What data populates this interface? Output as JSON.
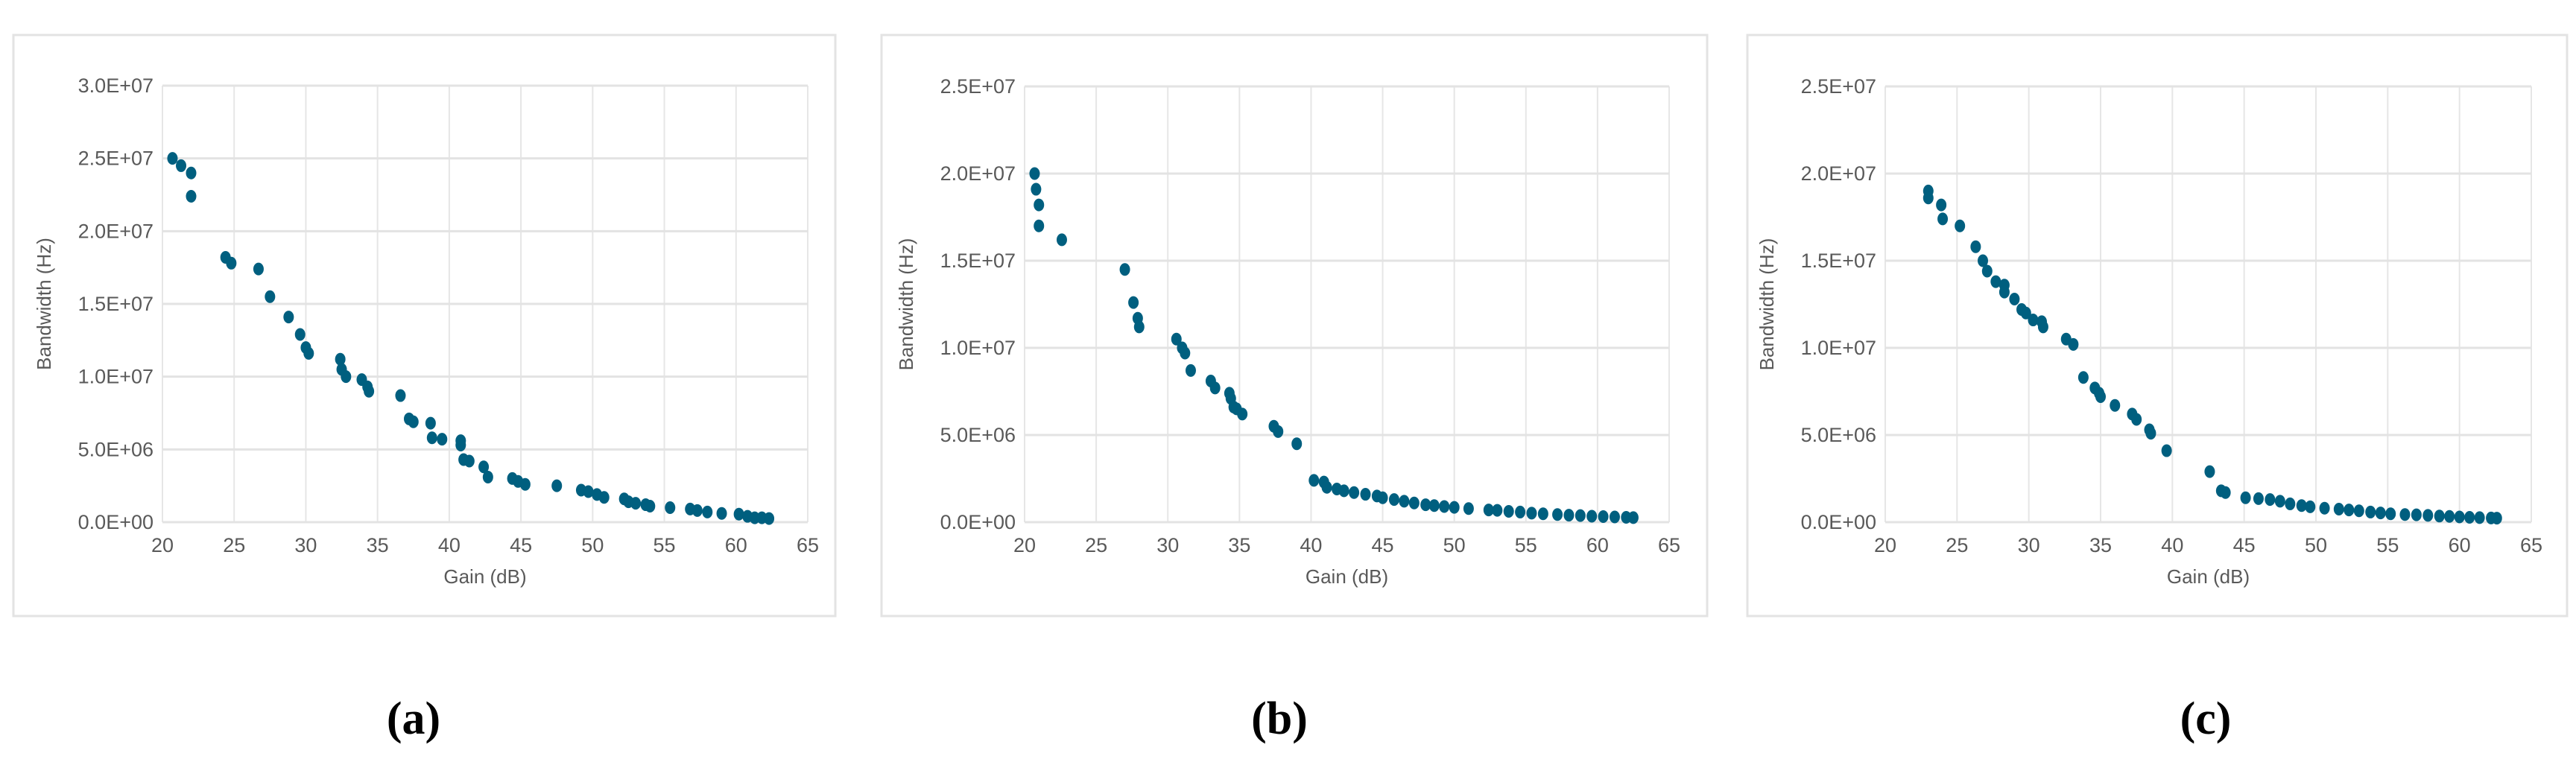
{
  "chart_data": [
    {
      "type": "scatter",
      "label": "(a)",
      "xlabel": "Gain (dB)",
      "ylabel": "Bandwidth (Hz)",
      "xlim": [
        20,
        65
      ],
      "ylim": [
        0,
        30000000
      ],
      "grid": true,
      "color": "#005f7f",
      "xticks": [
        "20",
        "25",
        "30",
        "35",
        "40",
        "45",
        "50",
        "55",
        "60",
        "65"
      ],
      "yticks": [
        "0.0E+00",
        "5.0E+06",
        "1.0E+07",
        "1.5E+07",
        "2.0E+07",
        "2.5E+07",
        "3.0E+07"
      ],
      "points": [
        [
          20.7,
          25000000
        ],
        [
          21.3,
          24500000
        ],
        [
          22,
          24000000
        ],
        [
          22,
          22400000
        ],
        [
          24.4,
          18200000
        ],
        [
          24.8,
          17800000
        ],
        [
          26.7,
          17400000
        ],
        [
          27.5,
          15500000
        ],
        [
          28.8,
          14100000
        ],
        [
          29.6,
          12900000
        ],
        [
          30,
          12000000
        ],
        [
          30.2,
          11600000
        ],
        [
          32.4,
          11200000
        ],
        [
          32.5,
          10500000
        ],
        [
          32.8,
          10000000
        ],
        [
          33.9,
          9800000
        ],
        [
          34.3,
          9300000
        ],
        [
          34.4,
          9000000
        ],
        [
          36.6,
          8700000
        ],
        [
          37.2,
          7100000
        ],
        [
          37.5,
          6900000
        ],
        [
          38.7,
          6800000
        ],
        [
          38.8,
          5800000
        ],
        [
          39.5,
          5700000
        ],
        [
          40.8,
          5600000
        ],
        [
          40.8,
          5300000
        ],
        [
          41,
          4300000
        ],
        [
          41.4,
          4200000
        ],
        [
          42.4,
          3800000
        ],
        [
          42.7,
          3100000
        ],
        [
          44.4,
          3000000
        ],
        [
          44.8,
          2800000
        ],
        [
          45.3,
          2600000
        ],
        [
          47.5,
          2500000
        ],
        [
          49.2,
          2200000
        ],
        [
          49.7,
          2100000
        ],
        [
          50.3,
          1900000
        ],
        [
          50.8,
          1700000
        ],
        [
          52.2,
          1600000
        ],
        [
          52.5,
          1400000
        ],
        [
          53,
          1300000
        ],
        [
          53.7,
          1200000
        ],
        [
          54,
          1100000
        ],
        [
          55.4,
          1000000
        ],
        [
          56.8,
          900000
        ],
        [
          57.3,
          800000
        ],
        [
          58,
          700000
        ],
        [
          59,
          600000
        ],
        [
          60.2,
          550000
        ],
        [
          60.8,
          400000
        ],
        [
          61.3,
          300000
        ],
        [
          61.8,
          300000
        ],
        [
          62.3,
          250000
        ]
      ]
    },
    {
      "type": "scatter",
      "label": "(b)",
      "xlabel": "Gain (dB)",
      "ylabel": "Bandwidth (Hz)",
      "xlim": [
        20,
        65
      ],
      "ylim": [
        0,
        25000000
      ],
      "grid": true,
      "color": "#005f7f",
      "xticks": [
        "20",
        "25",
        "30",
        "35",
        "40",
        "45",
        "50",
        "55",
        "60",
        "65"
      ],
      "yticks": [
        "0.0E+00",
        "5.0E+06",
        "1.0E+07",
        "1.5E+07",
        "2.0E+07",
        "2.5E+07"
      ],
      "points": [
        [
          20.7,
          20000000
        ],
        [
          20.8,
          19100000
        ],
        [
          21,
          18200000
        ],
        [
          21,
          17000000
        ],
        [
          22.6,
          16200000
        ],
        [
          27,
          14500000
        ],
        [
          27.6,
          12600000
        ],
        [
          27.9,
          11700000
        ],
        [
          28,
          11200000
        ],
        [
          30.6,
          10500000
        ],
        [
          31,
          10000000
        ],
        [
          31.2,
          9700000
        ],
        [
          31.6,
          8700000
        ],
        [
          33,
          8100000
        ],
        [
          33.3,
          7700000
        ],
        [
          34.3,
          7400000
        ],
        [
          34.4,
          7100000
        ],
        [
          34.6,
          6600000
        ],
        [
          34.8,
          6500000
        ],
        [
          35.2,
          6200000
        ],
        [
          37.4,
          5500000
        ],
        [
          37.7,
          5200000
        ],
        [
          39,
          4500000
        ],
        [
          40.2,
          2400000
        ],
        [
          40.9,
          2300000
        ],
        [
          41.1,
          2000000
        ],
        [
          41.8,
          1900000
        ],
        [
          42.3,
          1800000
        ],
        [
          43,
          1700000
        ],
        [
          43.8,
          1600000
        ],
        [
          44.6,
          1500000
        ],
        [
          45,
          1400000
        ],
        [
          45.8,
          1300000
        ],
        [
          46.5,
          1200000
        ],
        [
          47.2,
          1100000
        ],
        [
          48,
          1000000
        ],
        [
          48.6,
          950000
        ],
        [
          49.3,
          900000
        ],
        [
          50,
          850000
        ],
        [
          51,
          780000
        ],
        [
          52.4,
          700000
        ],
        [
          53,
          680000
        ],
        [
          53.8,
          620000
        ],
        [
          54.6,
          580000
        ],
        [
          55.4,
          520000
        ],
        [
          56.2,
          480000
        ],
        [
          57.2,
          440000
        ],
        [
          58,
          400000
        ],
        [
          58.8,
          380000
        ],
        [
          59.6,
          340000
        ],
        [
          60.4,
          320000
        ],
        [
          61.2,
          300000
        ],
        [
          62,
          280000
        ],
        [
          62.5,
          260000
        ]
      ]
    },
    {
      "type": "scatter",
      "label": "(c)",
      "xlabel": "Gain (dB)",
      "ylabel": "Bandwidth (Hz)",
      "xlim": [
        20,
        65
      ],
      "ylim": [
        0,
        25000000
      ],
      "grid": true,
      "color": "#005f7f",
      "xticks": [
        "20",
        "25",
        "30",
        "35",
        "40",
        "45",
        "50",
        "55",
        "60",
        "65"
      ],
      "yticks": [
        "0.0E+00",
        "5.0E+06",
        "1.0E+07",
        "1.5E+07",
        "2.0E+07",
        "2.5E+07"
      ],
      "points": [
        [
          23,
          19000000
        ],
        [
          23,
          18600000
        ],
        [
          23.9,
          18200000
        ],
        [
          24,
          17400000
        ],
        [
          25.2,
          17000000
        ],
        [
          26.3,
          15800000
        ],
        [
          26.8,
          15000000
        ],
        [
          27.1,
          14400000
        ],
        [
          27.7,
          13800000
        ],
        [
          28.3,
          13600000
        ],
        [
          28.3,
          13200000
        ],
        [
          29,
          12800000
        ],
        [
          29.5,
          12200000
        ],
        [
          29.8,
          12000000
        ],
        [
          30.3,
          11600000
        ],
        [
          30.9,
          11500000
        ],
        [
          31,
          11200000
        ],
        [
          32.6,
          10500000
        ],
        [
          33.1,
          10200000
        ],
        [
          33.8,
          8300000
        ],
        [
          34.6,
          7700000
        ],
        [
          34.9,
          7400000
        ],
        [
          35,
          7200000
        ],
        [
          36,
          6700000
        ],
        [
          37.2,
          6200000
        ],
        [
          37.5,
          5900000
        ],
        [
          38.4,
          5300000
        ],
        [
          38.5,
          5100000
        ],
        [
          39.6,
          4100000
        ],
        [
          42.6,
          2900000
        ],
        [
          43.4,
          1800000
        ],
        [
          43.7,
          1700000
        ],
        [
          45.1,
          1400000
        ],
        [
          46,
          1350000
        ],
        [
          46.8,
          1300000
        ],
        [
          47.5,
          1200000
        ],
        [
          48.2,
          1050000
        ],
        [
          49,
          950000
        ],
        [
          49.6,
          880000
        ],
        [
          50.6,
          800000
        ],
        [
          51.6,
          750000
        ],
        [
          52.3,
          700000
        ],
        [
          53,
          650000
        ],
        [
          53.8,
          580000
        ],
        [
          54.5,
          530000
        ],
        [
          55.2,
          480000
        ],
        [
          56.2,
          440000
        ],
        [
          57,
          420000
        ],
        [
          57.8,
          390000
        ],
        [
          58.6,
          350000
        ],
        [
          59.3,
          330000
        ],
        [
          60,
          300000
        ],
        [
          60.7,
          280000
        ],
        [
          61.4,
          260000
        ],
        [
          62.2,
          240000
        ],
        [
          62.6,
          230000
        ]
      ]
    }
  ]
}
